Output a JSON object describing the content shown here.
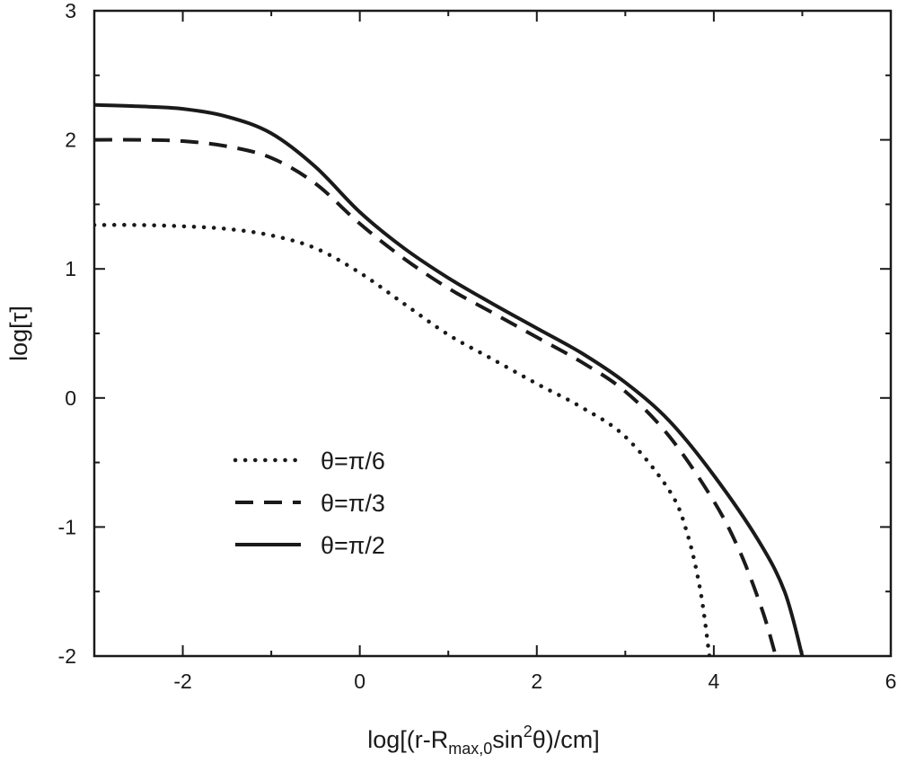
{
  "chart_data": {
    "type": "line",
    "xlabel_parts": [
      "log[(r-R",
      "max,0",
      "sin",
      "2",
      "θ)/cm]"
    ],
    "ylabel": "log[τ]",
    "xlim": [
      -3,
      6
    ],
    "ylim": [
      -2,
      3
    ],
    "xticks": [
      -2,
      0,
      2,
      4,
      6
    ],
    "yticks": [
      -2,
      -1,
      0,
      1,
      2,
      3
    ],
    "grid": false,
    "legend_position": "lower-left",
    "series": [
      {
        "name": "θ=π/6",
        "style": "dotted",
        "color": "#1a1a1a",
        "points": [
          [
            -3,
            1.34
          ],
          [
            -2.5,
            1.34
          ],
          [
            -2,
            1.33
          ],
          [
            -1.5,
            1.31
          ],
          [
            -1,
            1.26
          ],
          [
            -0.5,
            1.16
          ],
          [
            0,
            0.97
          ],
          [
            0.5,
            0.73
          ],
          [
            1,
            0.49
          ],
          [
            1.5,
            0.3
          ],
          [
            2,
            0.11
          ],
          [
            2.5,
            -0.07
          ],
          [
            3,
            -0.3
          ],
          [
            3.5,
            -0.72
          ],
          [
            3.7,
            -1.05
          ],
          [
            3.85,
            -1.5
          ],
          [
            3.95,
            -2.0
          ]
        ]
      },
      {
        "name": "θ=π/3",
        "style": "dashed",
        "color": "#1a1a1a",
        "points": [
          [
            -3,
            2.0
          ],
          [
            -2.5,
            2.0
          ],
          [
            -2,
            1.99
          ],
          [
            -1.5,
            1.95
          ],
          [
            -1,
            1.86
          ],
          [
            -0.5,
            1.66
          ],
          [
            0,
            1.35
          ],
          [
            0.5,
            1.08
          ],
          [
            1,
            0.85
          ],
          [
            1.5,
            0.66
          ],
          [
            2,
            0.47
          ],
          [
            2.5,
            0.28
          ],
          [
            3,
            0.05
          ],
          [
            3.5,
            -0.3
          ],
          [
            4,
            -0.8
          ],
          [
            4.3,
            -1.2
          ],
          [
            4.55,
            -1.65
          ],
          [
            4.7,
            -2.0
          ]
        ]
      },
      {
        "name": "θ=π/2",
        "style": "solid",
        "color": "#1a1a1a",
        "points": [
          [
            -3,
            2.27
          ],
          [
            -2.5,
            2.26
          ],
          [
            -2,
            2.24
          ],
          [
            -1.5,
            2.18
          ],
          [
            -1,
            2.05
          ],
          [
            -0.5,
            1.79
          ],
          [
            0,
            1.44
          ],
          [
            0.5,
            1.16
          ],
          [
            1,
            0.93
          ],
          [
            1.5,
            0.73
          ],
          [
            2,
            0.54
          ],
          [
            2.5,
            0.35
          ],
          [
            3,
            0.12
          ],
          [
            3.5,
            -0.18
          ],
          [
            4,
            -0.6
          ],
          [
            4.5,
            -1.1
          ],
          [
            4.8,
            -1.5
          ],
          [
            5.0,
            -2.0
          ]
        ]
      }
    ]
  }
}
